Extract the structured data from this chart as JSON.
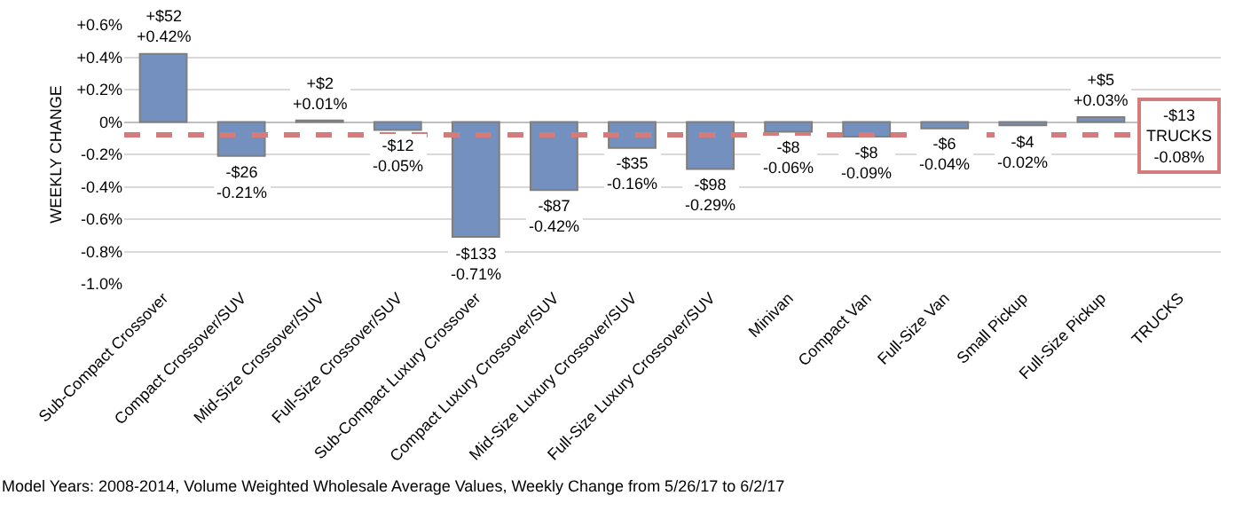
{
  "chart_data": {
    "type": "bar",
    "ylabel": "WEEKLY CHANGE",
    "categories": [
      "Sub-Compact Crossover",
      "Compact Crossover/SUV",
      "Mid-Size Crossover/SUV",
      "Full-Size Crossover/SUV",
      "Sub-Compact Luxury Crossover",
      "Compact Luxury Crossover/SUV",
      "Mid-Size Luxury Crossover/SUV",
      "Full-Size Luxury Crossover/SUV",
      "Minivan",
      "Compact Van",
      "Full-Size Van",
      "Small Pickup",
      "Full-Size Pickup",
      "TRUCKS"
    ],
    "values": [
      0.42,
      -0.21,
      0.01,
      -0.05,
      -0.71,
      -0.42,
      -0.16,
      -0.29,
      -0.06,
      -0.09,
      -0.04,
      -0.02,
      0.03,
      null
    ],
    "value_labels": [
      "+$52\n+0.42%",
      "-$26\n-0.21%",
      "+$2\n+0.01%",
      "-$12\n-0.05%",
      "-$133\n-0.71%",
      "-$87\n-0.42%",
      "-$35\n-0.16%",
      "-$98\n-0.29%",
      "-$8\n-0.06%",
      "-$8\n-0.09%",
      "-$6\n-0.04%",
      "-$4\n-0.02%",
      "+$5\n+0.03%",
      null
    ],
    "color": "#7390be",
    "ylim": [
      -1.0,
      0.6
    ],
    "yticks": [
      {
        "value": 0.6,
        "label": "+0.6%"
      },
      {
        "value": 0.4,
        "label": "+0.4%"
      },
      {
        "value": 0.2,
        "label": "+0.2%"
      },
      {
        "value": 0,
        "label": "0%"
      },
      {
        "value": -0.2,
        "label": "-0.2%"
      },
      {
        "value": -0.4,
        "label": "-0.4%"
      },
      {
        "value": -0.6,
        "label": "-0.6%"
      },
      {
        "value": -0.8,
        "label": "-0.8%"
      },
      {
        "value": -1.0,
        "label": "-1.0%"
      }
    ],
    "grid": "y",
    "legend": false,
    "ref_lines": [
      {
        "axis": "y",
        "value": -0.08,
        "label": "-$13\nTRUCKS\n-0.08%",
        "color": "#d47b7b",
        "line_style": "dashed"
      }
    ],
    "annotations": [
      "Model Years: 2008-2014, Volume Weighted Wholesale Average Values, Weekly Change from 5/26/17 to 6/2/17"
    ]
  }
}
